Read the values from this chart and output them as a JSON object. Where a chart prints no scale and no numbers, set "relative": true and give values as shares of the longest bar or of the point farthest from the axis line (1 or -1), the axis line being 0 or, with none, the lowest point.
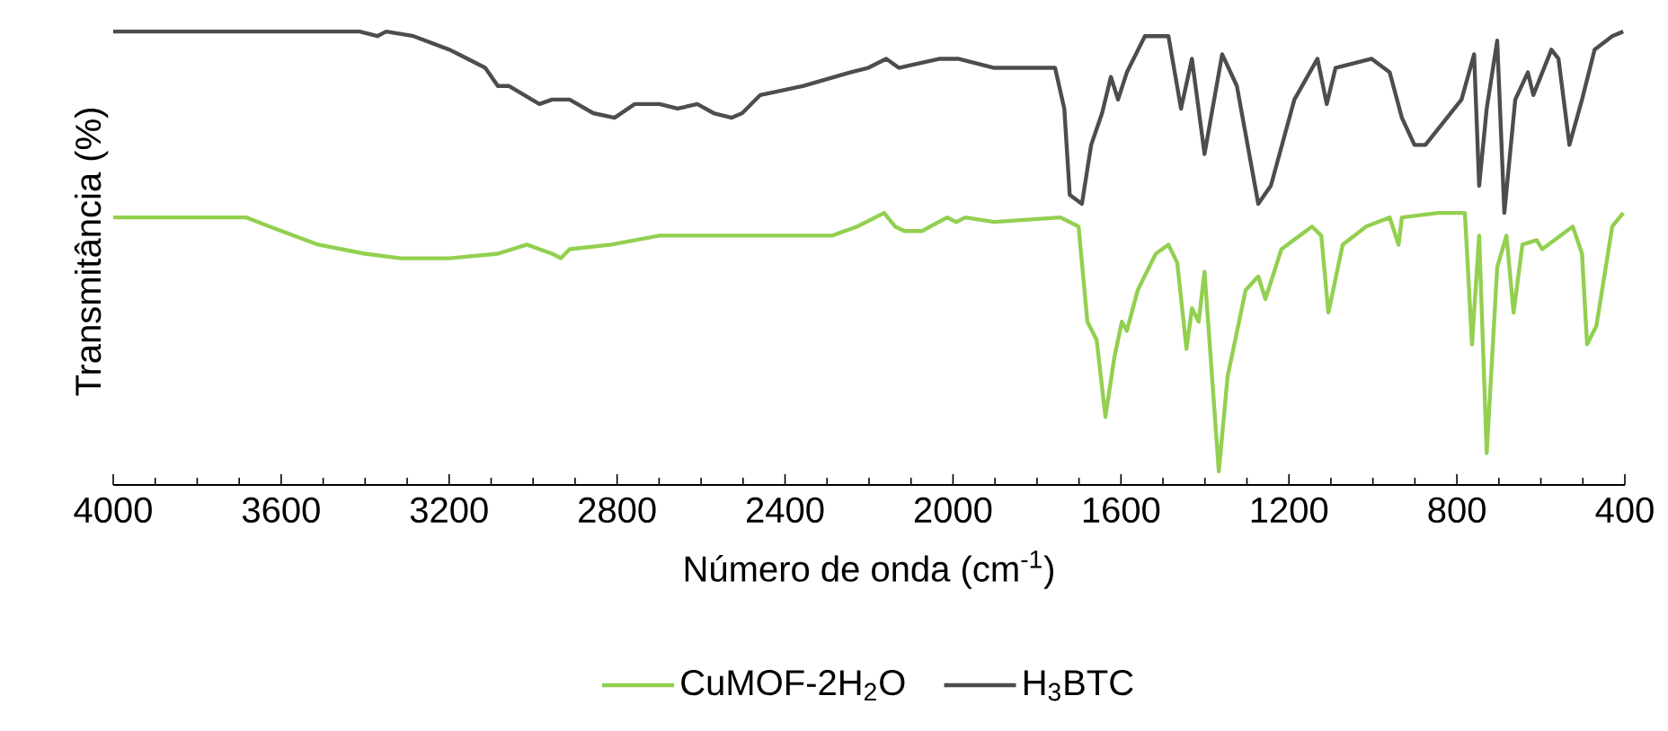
{
  "chart_data": {
    "type": "line",
    "xlabel": "Número de onda (cm$^{-1}$)",
    "ylabel": "Transmitância (%)",
    "xlim": [
      4000,
      400
    ],
    "xticks": [
      4000,
      3600,
      3200,
      2800,
      2400,
      2000,
      1600,
      1200,
      800,
      400
    ],
    "relative": true,
    "tick_labels": "x",
    "legend": "bottom",
    "series": [
      {
        "name": "CuMOF-2H$_{2}$O",
        "color": "#92d050",
        "x": [
          4000,
          3683,
          3628,
          3512,
          3401,
          3315,
          3199,
          3084,
          3015,
          2955,
          2934,
          2913,
          2814,
          2699,
          2484,
          2343,
          2288,
          2228,
          2164,
          2138,
          2116,
          2074,
          2014,
          1992,
          1971,
          1902,
          1744,
          1701,
          1680,
          1658,
          1637,
          1616,
          1598,
          1586,
          1560,
          1517,
          1487,
          1466,
          1444,
          1431,
          1415,
          1401,
          1367,
          1346,
          1303,
          1273,
          1256,
          1218,
          1145,
          1123,
          1106,
          1072,
          1016,
          960,
          939,
          931,
          845,
          781,
          764,
          747,
          729,
          704,
          682,
          665,
          644,
          610,
          597,
          524,
          502,
          490,
          468,
          430,
          404
        ],
        "values": [
          0.59,
          0.59,
          0.57,
          0.53,
          0.51,
          0.5,
          0.5,
          0.51,
          0.53,
          0.51,
          0.5,
          0.52,
          0.53,
          0.55,
          0.55,
          0.55,
          0.55,
          0.57,
          0.6,
          0.57,
          0.56,
          0.56,
          0.59,
          0.58,
          0.59,
          0.58,
          0.59,
          0.57,
          0.36,
          0.32,
          0.15,
          0.28,
          0.36,
          0.34,
          0.43,
          0.51,
          0.53,
          0.49,
          0.3,
          0.39,
          0.36,
          0.47,
          0.03,
          0.24,
          0.43,
          0.46,
          0.41,
          0.52,
          0.57,
          0.55,
          0.38,
          0.53,
          0.57,
          0.59,
          0.53,
          0.59,
          0.6,
          0.6,
          0.31,
          0.55,
          0.07,
          0.48,
          0.55,
          0.38,
          0.53,
          0.54,
          0.52,
          0.57,
          0.51,
          0.31,
          0.35,
          0.57,
          0.6
        ]
      },
      {
        "name": "H$_{3}$BTC",
        "color": "#4d4d4d",
        "x": [
          4000,
          3413,
          3371,
          3350,
          3285,
          3199,
          3114,
          3084,
          3058,
          2985,
          2955,
          2913,
          2857,
          2806,
          2758,
          2699,
          2656,
          2609,
          2570,
          2527,
          2502,
          2459,
          2356,
          2245,
          2202,
          2159,
          2129,
          2031,
          1988,
          1902,
          1774,
          1757,
          1735,
          1722,
          1693,
          1671,
          1645,
          1624,
          1607,
          1586,
          1543,
          1487,
          1457,
          1431,
          1401,
          1359,
          1324,
          1273,
          1243,
          1187,
          1132,
          1110,
          1089,
          1003,
          960,
          931,
          901,
          875,
          789,
          759,
          747,
          729,
          704,
          687,
          661,
          631,
          618,
          575,
          558,
          532,
          502,
          472,
          430,
          404
        ],
        "values": [
          1.0,
          1.0,
          0.99,
          1.0,
          0.99,
          0.96,
          0.92,
          0.88,
          0.88,
          0.84,
          0.85,
          0.85,
          0.82,
          0.81,
          0.84,
          0.84,
          0.83,
          0.84,
          0.82,
          0.81,
          0.82,
          0.86,
          0.88,
          0.91,
          0.92,
          0.94,
          0.92,
          0.94,
          0.94,
          0.92,
          0.92,
          0.92,
          0.83,
          0.64,
          0.62,
          0.75,
          0.82,
          0.9,
          0.85,
          0.91,
          0.99,
          0.99,
          0.83,
          0.94,
          0.73,
          0.95,
          0.88,
          0.62,
          0.66,
          0.85,
          0.94,
          0.84,
          0.92,
          0.94,
          0.91,
          0.81,
          0.75,
          0.75,
          0.85,
          0.95,
          0.66,
          0.83,
          0.98,
          0.6,
          0.85,
          0.91,
          0.86,
          0.96,
          0.94,
          0.75,
          0.85,
          0.96,
          0.99,
          1.0
        ]
      }
    ]
  }
}
